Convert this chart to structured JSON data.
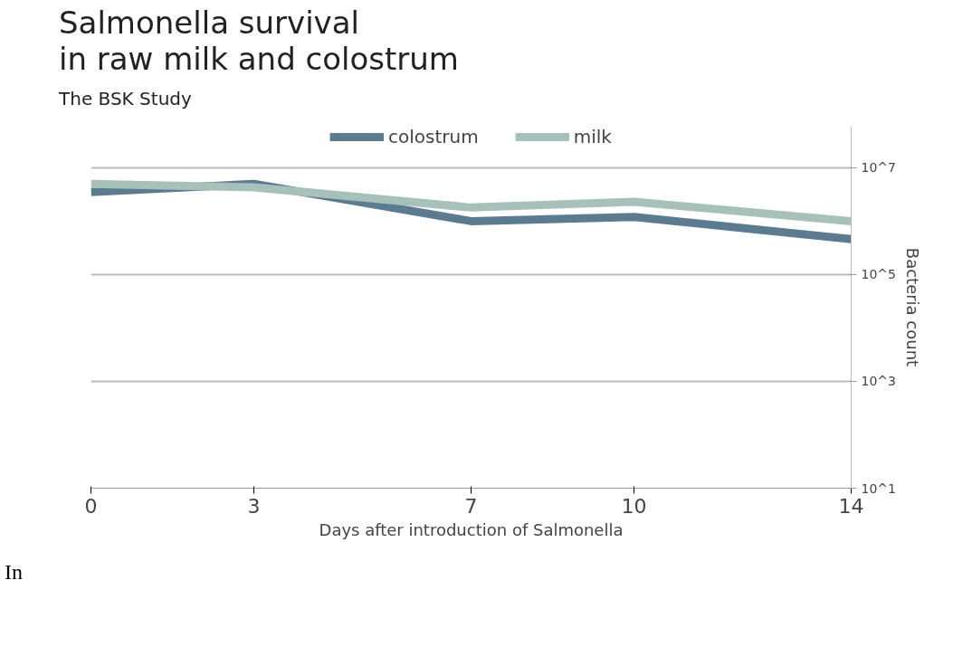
{
  "chart_data": {
    "type": "line",
    "title": "Salmonella survival\nin raw milk and colostrum",
    "subtitle": "The BSK Study",
    "xlabel": "Days after introduction of Salmonella",
    "ylabel": "Bacteria count",
    "x": [
      0,
      3,
      7,
      10,
      14
    ],
    "series": [
      {
        "name": "colostrum",
        "color": "#5b7b90",
        "values": [
          3500000,
          5000000,
          1000000,
          1200000,
          460000
        ]
      },
      {
        "name": "milk",
        "color": "#a8c0ba",
        "values": [
          5000000,
          4300000,
          1800000,
          2300000,
          1000000
        ]
      }
    ],
    "log": true,
    "ylim": [
      10,
      60000000
    ],
    "yticks": [
      {
        "value": 10,
        "label": "10^1"
      },
      {
        "value": 1000,
        "label": "10^3"
      },
      {
        "value": 100000,
        "label": "10^5"
      },
      {
        "value": 10000000,
        "label": "10^7"
      }
    ],
    "xlim": [
      0,
      14
    ],
    "xticks": [
      0,
      3,
      7,
      10,
      14
    ],
    "grid": "y",
    "legend": "top",
    "line_style": "solid",
    "annotations": [
      "In"
    ]
  }
}
